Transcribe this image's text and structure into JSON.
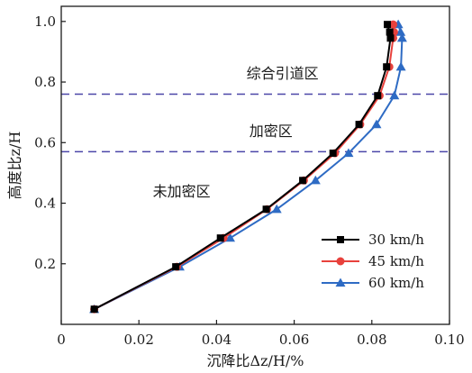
{
  "chart_data": {
    "type": "line",
    "xlabel": "沉降比Δz/H/%",
    "ylabel": "高度比z/H",
    "xlim": [
      0,
      0.1
    ],
    "ylim": [
      0,
      1.05
    ],
    "x_ticks": [
      0,
      0.02,
      0.04,
      0.06,
      0.08,
      0.1
    ],
    "x_tick_labels": [
      "0",
      "0.02",
      "0.04",
      "0.06",
      "0.08",
      "0.10"
    ],
    "y_ticks": [
      0.2,
      0.4,
      0.6,
      0.8,
      1.0
    ],
    "y_tick_labels": [
      "0.2",
      "0.4",
      "0.6",
      "0.8",
      "1.0"
    ],
    "grid": false,
    "legend_position": "lower-right",
    "zone_lines": [
      0.76,
      0.57
    ],
    "zone_line_color": "#4b46a8",
    "annotations": [
      {
        "text": "综合引道区",
        "x": 0.057,
        "y": 0.83
      },
      {
        "text": "加密区",
        "x": 0.054,
        "y": 0.64
      },
      {
        "text": "未加密区",
        "x": 0.031,
        "y": 0.44
      }
    ],
    "series": [
      {
        "name": "30 km/h",
        "color": "#000000",
        "marker": "square",
        "x": [
          0.0085,
          0.0295,
          0.041,
          0.0528,
          0.0622,
          0.07,
          0.0767,
          0.0815,
          0.0838,
          0.0848,
          0.0846,
          0.084
        ],
        "y": [
          0.05,
          0.19,
          0.285,
          0.38,
          0.475,
          0.565,
          0.66,
          0.755,
          0.85,
          0.945,
          0.965,
          0.99
        ]
      },
      {
        "name": "45 km/h",
        "color": "#e8413c",
        "marker": "circle",
        "x": [
          0.0085,
          0.0298,
          0.0418,
          0.053,
          0.0625,
          0.0705,
          0.077,
          0.082,
          0.0845,
          0.0855,
          0.0857,
          0.0855
        ],
        "y": [
          0.05,
          0.19,
          0.285,
          0.38,
          0.475,
          0.565,
          0.66,
          0.755,
          0.85,
          0.945,
          0.965,
          0.99
        ]
      },
      {
        "name": "60 km/h",
        "color": "#2e6bc4",
        "marker": "triangle",
        "x": [
          0.0085,
          0.0305,
          0.0435,
          0.0555,
          0.0655,
          0.074,
          0.0812,
          0.0858,
          0.0875,
          0.0878,
          0.0874,
          0.0868
        ],
        "y": [
          0.05,
          0.19,
          0.285,
          0.38,
          0.475,
          0.565,
          0.66,
          0.755,
          0.85,
          0.945,
          0.965,
          0.99
        ]
      }
    ]
  }
}
